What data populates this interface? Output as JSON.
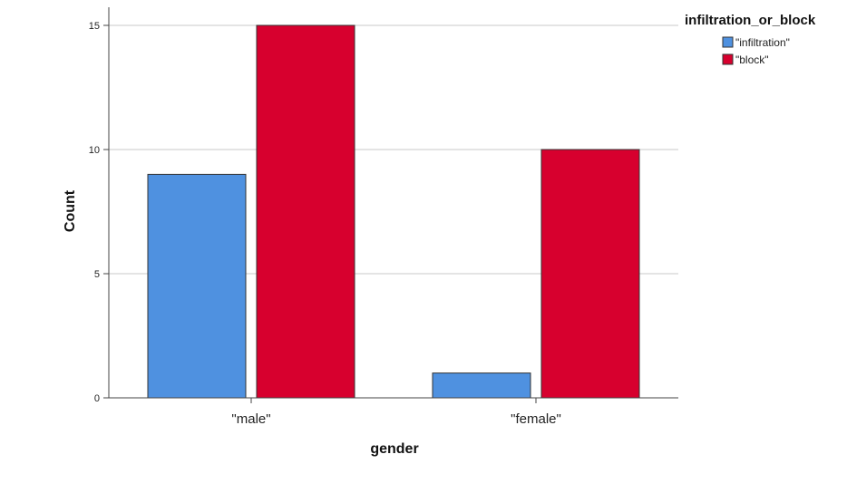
{
  "chart_data": {
    "type": "bar",
    "categories": [
      "\"male\"",
      "\"female\""
    ],
    "series": [
      {
        "name": "\"infiltration\"",
        "values": [
          9,
          1
        ],
        "color": "#4f91e0"
      },
      {
        "name": "\"block\"",
        "values": [
          15,
          10
        ],
        "color": "#d7002e"
      }
    ],
    "xlabel": "gender",
    "ylabel": "Count",
    "ylim": [
      0,
      15
    ],
    "yticks": [
      0,
      5,
      10,
      15
    ],
    "grid": true,
    "legend": {
      "title": "infiltration_or_block",
      "position": "top-right"
    }
  }
}
